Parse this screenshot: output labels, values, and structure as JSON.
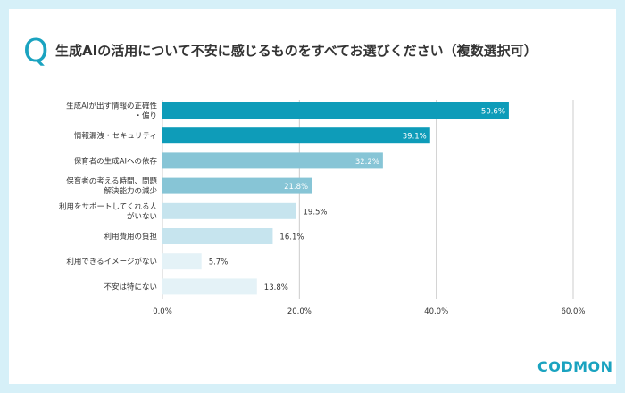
{
  "title": "生成AIの活用について不安に感じるものをすべてお選びください（複数選択可）",
  "q_mark": "Q",
  "logo": "CODMON",
  "colors": {
    "bar_dark": "#0e9cb9",
    "bar_mid": "#87c5d6",
    "bar_light": "#c6e4ee",
    "bar_faint": "#e4f2f7",
    "grid": "#cccccc",
    "text": "#333333"
  },
  "chart_data": {
    "type": "bar",
    "orientation": "horizontal",
    "categories": [
      [
        "生成AIが出す情報の正確性",
        "・偏り"
      ],
      [
        "情報漏洩・セキュリティ"
      ],
      [
        "保育者の生成AIへの依存"
      ],
      [
        "保育者の考える時間、問題",
        "解決能力の減少"
      ],
      [
        "利用をサポートしてくれる人",
        "がいない"
      ],
      [
        "利用費用の負担"
      ],
      [
        "利用できるイメージがない"
      ],
      [
        "不安は特にない"
      ]
    ],
    "values": [
      50.6,
      39.1,
      32.2,
      21.8,
      19.5,
      16.1,
      5.7,
      13.8
    ],
    "value_labels": [
      "50.6%",
      "39.1%",
      "32.2%",
      "21.8%",
      "19.5%",
      "16.1%",
      "5.7%",
      "13.8%"
    ],
    "xlim": [
      0,
      60
    ],
    "xticks": [
      0,
      20,
      40,
      60
    ],
    "xtick_labels": [
      "0.0%",
      "20.0%",
      "40.0%",
      "60.0%"
    ],
    "grid": "vertical"
  }
}
